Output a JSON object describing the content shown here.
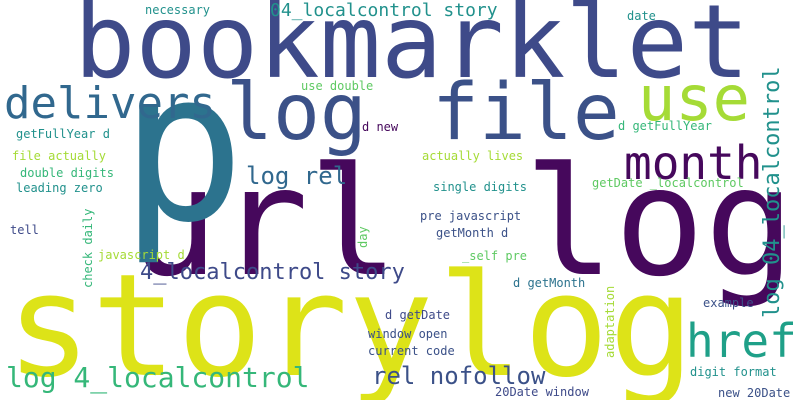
{
  "colors": {
    "background": "#ffffff",
    "deep_purple": "#46085c",
    "indigo": "#3e4a89",
    "slate_blue": "#3b5188",
    "steel_blue": "#31688e",
    "teal_blue": "#2c738e",
    "teal": "#21918c",
    "sea_green": "#1fa088",
    "green": "#35b779",
    "light_green": "#5ec962",
    "lime": "#a5db36",
    "yellow": "#dde318"
  },
  "words": {
    "w01": "url",
    "w02": "log",
    "w03": "story",
    "w04": "log",
    "w05": "bookmarklet",
    "w06": "log",
    "w07": "file",
    "w08": "p",
    "w09": "delivers",
    "w10": "use",
    "w11": "month",
    "w12": "href",
    "w13": "log 4_localcontrol",
    "w14": "rel nofollow",
    "w15": "4_localcontrol story",
    "w16": "log rel",
    "w17": "log 04_localcontrol",
    "w18": "04_localcontrol story",
    "w19": "necessary",
    "w20": "date",
    "w21": "use double",
    "w22": "d new",
    "w23": "d getFullYear",
    "w24": "getFullYear d",
    "w25": "file actually",
    "w26": "double digits",
    "w27": "leading zero",
    "w28": "actually lives",
    "w29": "single digits",
    "w30": "getDate _localcontrol",
    "w31": "pre javascript",
    "w32": "getMonth d",
    "w33": "tell",
    "w34": "check daily",
    "w35": "javascript d",
    "w36": "day",
    "w37": "_self pre",
    "w38": "d getMonth",
    "w39": "d getDate",
    "w40": "window open",
    "w41": "current code",
    "w42": "adaptation",
    "w43": "example",
    "w44": "digit format",
    "w45": "20Date window",
    "w46": "new 20Date"
  }
}
